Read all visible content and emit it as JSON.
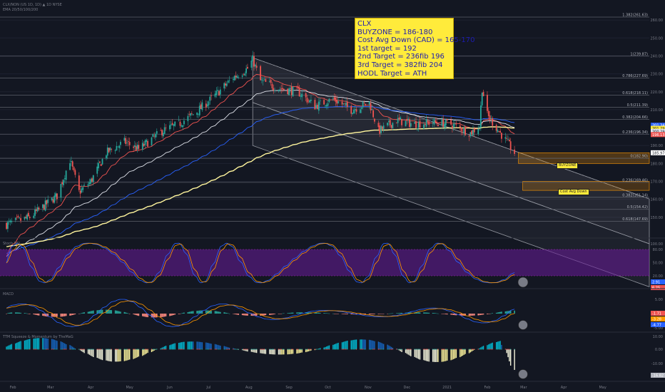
{
  "header": {
    "symbol_line": "CLX/NON (US 1D, 1D) ▲ 1D NYSE",
    "indicator_line": "EMA 20/50/100/200"
  },
  "annotation": {
    "lines": [
      "CLX",
      "BUYZONE = 186-180",
      "Cost Avg Down (CAD) = 165-170",
      "1st target = 192",
      "2nd Target = 236fib 196",
      "3rd Target = 382fib 204",
      "HODL Target = ATH"
    ]
  },
  "zones": {
    "buyzone_label": "BUYZONE",
    "cad_label": "Cost Avg Down"
  },
  "fib_levels": [
    {
      "label": "1.382(261.63)",
      "price": 261.63
    },
    {
      "label": "1(239.87)",
      "price": 239.87
    },
    {
      "label": "0.786(227.69)",
      "price": 227.69
    },
    {
      "label": "0.618(218.11)",
      "price": 218.11
    },
    {
      "label": "0.5(211.39)",
      "price": 211.39
    },
    {
      "label": "0.382(204.66)",
      "price": 204.66
    },
    {
      "label": "0.236(196.34)",
      "price": 196.34
    },
    {
      "label": "0(182.90)",
      "price": 182.9
    },
    {
      "label": "0.236(169.46)",
      "price": 169.46
    },
    {
      "label": "0.382(161.14)",
      "price": 161.14
    },
    {
      "label": "0.5(154.42)",
      "price": 154.42
    },
    {
      "label": "0.618(147.69)",
      "price": 147.69
    }
  ],
  "price_badges": [
    {
      "label": "201.34",
      "price": 201.34,
      "color": "#2962ff"
    },
    {
      "label": "201.29",
      "price": 199.6,
      "color": "#ffeb3b"
    },
    {
      "label": "200.29",
      "price": 197.9,
      "color": "#e0e3eb"
    },
    {
      "label": "196.13",
      "price": 196.13,
      "color": "#ef5350"
    },
    {
      "label": "185.97",
      "price": 185.97,
      "color": "#ffffff"
    }
  ],
  "price_axis_ticks": [
    {
      "label": "260.00",
      "price": 260
    },
    {
      "label": "250.00",
      "price": 250
    },
    {
      "label": "240.00",
      "price": 240
    },
    {
      "label": "230.00",
      "price": 230
    },
    {
      "label": "220.00",
      "price": 220
    },
    {
      "label": "210.00",
      "price": 210
    },
    {
      "label": "190.00",
      "price": 190
    },
    {
      "label": "180.00",
      "price": 180
    },
    {
      "label": "170.00",
      "price": 170
    },
    {
      "label": "160.00",
      "price": 160
    },
    {
      "label": "150.00",
      "price": 150
    }
  ],
  "stoch": {
    "title": "Stoch RSI",
    "ticks": [
      "100.00",
      "80.00",
      "50.00",
      "20.00"
    ],
    "badges": [
      {
        "label": "2.91",
        "color": "#2962ff"
      },
      {
        "label": "6.25",
        "color": "#ef5350"
      }
    ]
  },
  "macd": {
    "title": "MACD",
    "ticks": [
      "5.00",
      "0.00",
      "-5.00"
    ],
    "badges": [
      {
        "label": "-1.71",
        "color": "#ef5350"
      },
      {
        "label": "-3.28",
        "color": "#ff9800"
      },
      {
        "label": "-4.77",
        "color": "#2962ff"
      }
    ]
  },
  "squeeze": {
    "title": "TTM Squeeze & Momentum by TheMaG",
    "ticks": [
      "10.00",
      "0.00",
      "-10.00"
    ],
    "badges": [
      {
        "label": "-16.82",
        "color": "#b2b5be"
      }
    ]
  },
  "time_axis": [
    "Feb",
    "Mar",
    "Apr",
    "May",
    "Jun",
    "Jul",
    "Aug",
    "Sep",
    "Oct",
    "Nov",
    "Dec",
    "2021",
    "Feb",
    "Mar",
    "Apr",
    "May"
  ],
  "colors": {
    "background": "#131722",
    "up": "#26a69a",
    "down": "#ef5350",
    "ema20": "#ef5350",
    "ema50": "#e0e3eb",
    "ema100": "#2962ff",
    "ema200": "#fff59d",
    "stoch_band": "#6a1b9a"
  },
  "chart_data": {
    "type": "candlestick",
    "title": "",
    "xlabel": "",
    "ylabel": "",
    "ylim": [
      140,
      268
    ],
    "ohlc_close_path": [
      {
        "x": "2020-01-27",
        "close": 146
      },
      {
        "x": "2020-02-14",
        "close": 150
      },
      {
        "x": "2020-03-06",
        "close": 162
      },
      {
        "x": "2020-03-16",
        "close": 182
      },
      {
        "x": "2020-03-23",
        "close": 164
      },
      {
        "x": "2020-04-01",
        "close": 170
      },
      {
        "x": "2020-04-13",
        "close": 186
      },
      {
        "x": "2020-04-27",
        "close": 192
      },
      {
        "x": "2020-05-08",
        "close": 188
      },
      {
        "x": "2020-05-26",
        "close": 198
      },
      {
        "x": "2020-06-08",
        "close": 202
      },
      {
        "x": "2020-06-22",
        "close": 209
      },
      {
        "x": "2020-07-06",
        "close": 218
      },
      {
        "x": "2020-07-20",
        "close": 228
      },
      {
        "x": "2020-07-31",
        "close": 233
      },
      {
        "x": "2020-08-04",
        "close": 238
      },
      {
        "x": "2020-08-10",
        "close": 226
      },
      {
        "x": "2020-08-24",
        "close": 222
      },
      {
        "x": "2020-09-08",
        "close": 220
      },
      {
        "x": "2020-09-21",
        "close": 212
      },
      {
        "x": "2020-10-05",
        "close": 216
      },
      {
        "x": "2020-10-19",
        "close": 210
      },
      {
        "x": "2020-11-02",
        "close": 214
      },
      {
        "x": "2020-11-09",
        "close": 198
      },
      {
        "x": "2020-11-23",
        "close": 204
      },
      {
        "x": "2020-12-07",
        "close": 202
      },
      {
        "x": "2020-12-21",
        "close": 203
      },
      {
        "x": "2021-01-04",
        "close": 202
      },
      {
        "x": "2021-01-19",
        "close": 197
      },
      {
        "x": "2021-01-26",
        "close": 201
      },
      {
        "x": "2021-01-28",
        "close": 222
      },
      {
        "x": "2021-02-01",
        "close": 207
      },
      {
        "x": "2021-02-10",
        "close": 198
      },
      {
        "x": "2021-02-22",
        "close": 186
      }
    ],
    "series": [
      {
        "name": "EMA 20",
        "color": "#ef5350"
      },
      {
        "name": "EMA 50",
        "color": "#e0e3eb"
      },
      {
        "name": "EMA 100",
        "color": "#2962ff"
      },
      {
        "name": "EMA 200",
        "color": "#fff59d"
      }
    ],
    "legend": "none",
    "grid": true
  }
}
